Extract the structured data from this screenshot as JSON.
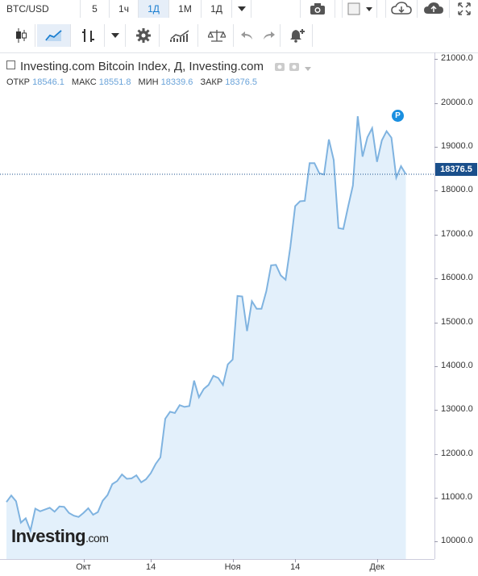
{
  "toolbar": {
    "symbol": "BTC/USD",
    "intervals": [
      "5",
      "1ч",
      "1Д",
      "1М",
      "1Д"
    ],
    "active_interval_index": 2
  },
  "legend": {
    "title": "Investing.com Bitcoin Index, Д, Investing.com",
    "open_label": "ОТКР",
    "open": "18546.1",
    "high_label": "МАКС",
    "high": "18551.8",
    "low_label": "МИН",
    "low": "18339.6",
    "close_label": "ЗАКР",
    "close": "18376.5"
  },
  "price_tag": "18376.5",
  "logo": {
    "main": "Investing",
    "suffix": ".com"
  },
  "marker": "P",
  "colors": {
    "line": "#7fb3e0",
    "fill": "#e3f0fb",
    "price_tag": "#1a4f8b",
    "accent": "#1a7ed0"
  },
  "chart_data": {
    "type": "area",
    "title": "Investing.com Bitcoin Index, Д, Investing.com",
    "ylim": [
      9600,
      21100
    ],
    "y_ticks": [
      "10000.0",
      "11000.0",
      "12000.0",
      "13000.0",
      "14000.0",
      "15000.0",
      "16000.0",
      "17000.0",
      "18000.0",
      "19000.0",
      "20000.0",
      "21000.0"
    ],
    "x_ticks": [
      {
        "label": "Окт",
        "day": 16
      },
      {
        "label": "14",
        "day": 30
      },
      {
        "label": "Ноя",
        "day": 47
      },
      {
        "label": "14",
        "day": 60
      },
      {
        "label": "Дек",
        "day": 77
      }
    ],
    "last_value": 18376.5,
    "values": [
      10900,
      11050,
      10920,
      10430,
      10530,
      10250,
      10750,
      10690,
      10730,
      10770,
      10680,
      10800,
      10790,
      10650,
      10590,
      10560,
      10650,
      10760,
      10610,
      10670,
      10930,
      11060,
      11310,
      11380,
      11530,
      11430,
      11440,
      11510,
      11350,
      11420,
      11560,
      11770,
      11920,
      12800,
      12960,
      12930,
      13110,
      13070,
      13090,
      13670,
      13290,
      13480,
      13570,
      13780,
      13730,
      13570,
      14040,
      14150,
      15600,
      15590,
      14800,
      15480,
      15310,
      15310,
      15710,
      16300,
      16310,
      16070,
      15970,
      16720,
      17650,
      17760,
      17770,
      18630,
      18630,
      18400,
      18370,
      19170,
      18700,
      17150,
      17130,
      17640,
      18120,
      19700,
      18780,
      19220,
      19430,
      18660,
      19150,
      19360,
      19210,
      18300,
      18560,
      18376.5
    ]
  }
}
